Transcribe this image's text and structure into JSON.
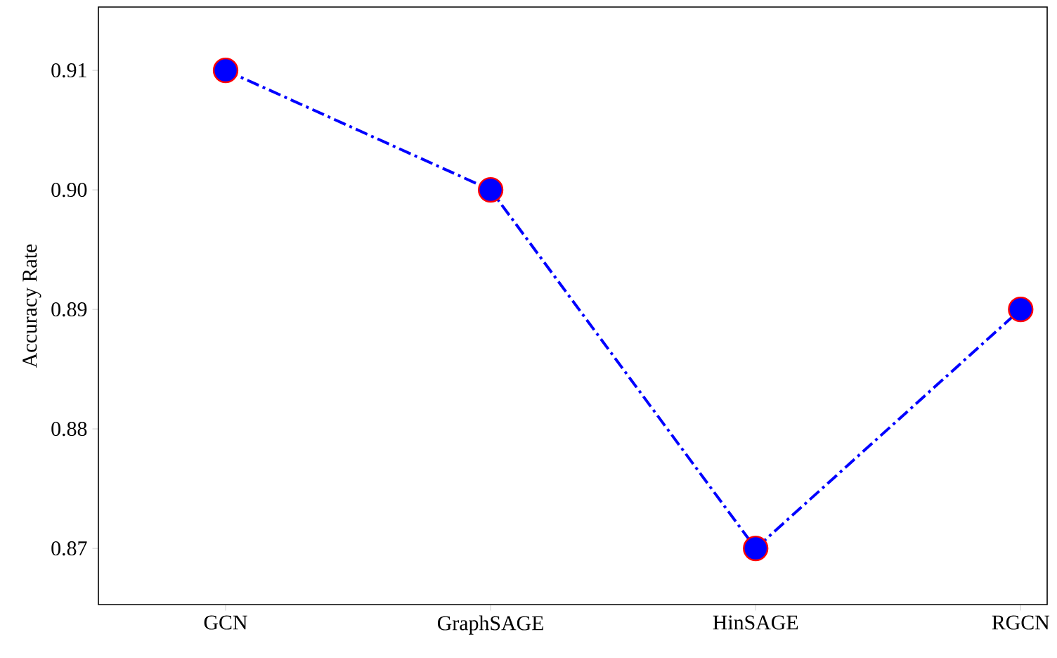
{
  "chart_data": {
    "type": "line",
    "ylabel": "Accuracy Rate",
    "categories": [
      "GCN",
      "GraphSAGE",
      "HinSAGE",
      "RGCN"
    ],
    "series": [
      {
        "color": "#0000ff",
        "values": [
          0.91,
          0.9,
          0.87,
          0.89
        ]
      }
    ],
    "ylim": [
      0.8653,
      0.9153
    ],
    "yticks": [
      {
        "value": 0.87,
        "label": "0.87"
      },
      {
        "value": 0.88,
        "label": "0.88"
      },
      {
        "value": 0.89,
        "label": "0.89"
      },
      {
        "value": 0.9,
        "label": "0.90"
      },
      {
        "value": 0.91,
        "label": "0.91"
      }
    ],
    "marker": "circle",
    "line_style": "dashed"
  }
}
